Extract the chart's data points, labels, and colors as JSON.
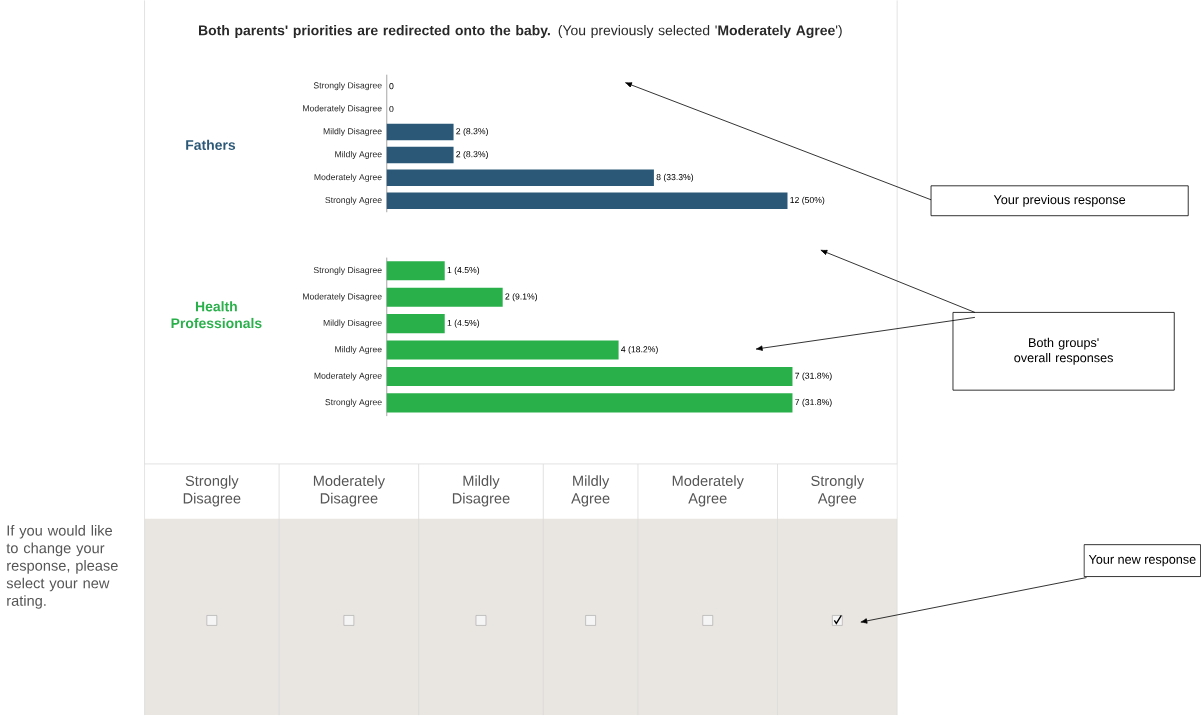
{
  "chart_data": [
    {
      "type": "bar",
      "orientation": "horizontal",
      "title": "**Both parents' priorities are redirected onto the baby.** (You previously selected '**Moderately Agree**')",
      "categories": [
        "Strongly Disagree",
        "Moderately Disagree",
        "Mildly Disagree",
        "Mildly Agree",
        "Moderately Agree",
        "Strongly Agree"
      ],
      "series": [
        {
          "name": "Fathers",
          "color": "#2b5877",
          "values": [
            0,
            0,
            2,
            2,
            8,
            12
          ],
          "value_labels": [
            "0",
            "0",
            "2 (8.3%)",
            "2 (8.3%)",
            "8 (33.3%)",
            "12 (50%)"
          ]
        }
      ],
      "annotations": [
        "Your previous response",
        "Both groups' overall responses"
      ]
    },
    {
      "type": "bar",
      "orientation": "horizontal",
      "categories": [
        "Strongly Disagree",
        "Moderately Disagree",
        "Mildly Disagree",
        "Mildly Agree",
        "Moderately Agree",
        "Strongly Agree"
      ],
      "series": [
        {
          "name": "Health Professionals",
          "color": "#2ab04b",
          "values": [
            1,
            2,
            1,
            4,
            7,
            7
          ],
          "value_labels": [
            "1 (4.5%)",
            "2 (9.1%)",
            "1 (4.5%)",
            "4 (18.2%)",
            "7 (31.8%)",
            "7 (31.8%)"
          ]
        }
      ]
    },
    {
      "type": "other",
      "categories": [
        "Strongly Disagree",
        "Moderately Disagree",
        "Mildly Disagree",
        "Mildly Agree",
        "Moderately Agree",
        "Strongly Agree"
      ],
      "annotations": [
        "If you would like to change your response, please select your new rating.",
        "Your new response"
      ]
    }
  ]
}
